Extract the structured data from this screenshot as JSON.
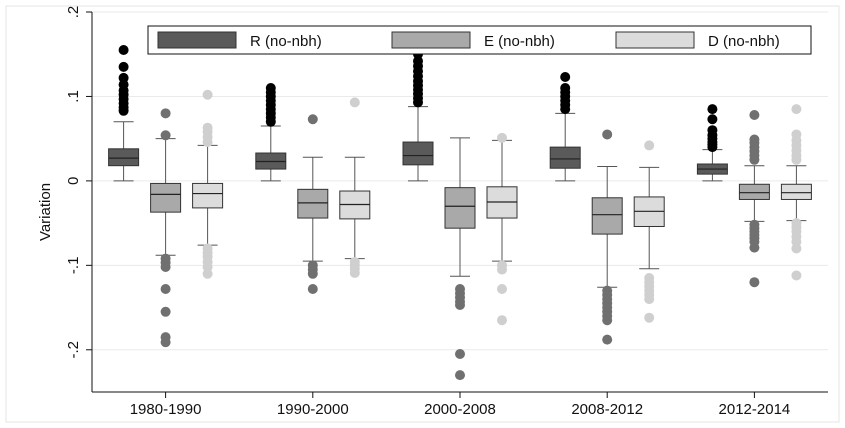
{
  "chart_data": {
    "type": "box",
    "ylabel": "Variation",
    "ylim": [
      -0.25,
      0.2
    ],
    "yticks": [
      {
        "value": 0.2,
        "label": ".2"
      },
      {
        "value": 0.1,
        "label": ".1"
      },
      {
        "value": 0.0,
        "label": "0"
      },
      {
        "value": -0.1,
        "label": "-.1"
      },
      {
        "value": -0.2,
        "label": "-.2"
      }
    ],
    "categories": [
      "1980-1990",
      "1990-2000",
      "2000-2008",
      "2008-2012",
      "2012-2014"
    ],
    "grid": true,
    "legend_position": "top-right",
    "series": [
      {
        "name": "R (no-nbh)",
        "color": "#5a5a5a",
        "boxes": [
          {
            "lw": 0.0,
            "q1": 0.018,
            "med": 0.027,
            "q3": 0.038,
            "uw": 0.07,
            "outliers": [
              0.083,
              0.087,
              0.092,
              0.097,
              0.102,
              0.107,
              0.114,
              0.122,
              0.135,
              0.155
            ]
          },
          {
            "lw": 0.0,
            "q1": 0.014,
            "med": 0.023,
            "q3": 0.033,
            "uw": 0.065,
            "outliers": [
              0.07,
              0.075,
              0.08,
              0.085,
              0.09,
              0.095,
              0.1,
              0.105,
              0.11
            ]
          },
          {
            "lw": 0.0,
            "q1": 0.019,
            "med": 0.03,
            "q3": 0.046,
            "uw": 0.088,
            "outliers": [
              0.093,
              0.098,
              0.103,
              0.108,
              0.113,
              0.118,
              0.124,
              0.13,
              0.136,
              0.142,
              0.15
            ]
          },
          {
            "lw": 0.0,
            "q1": 0.015,
            "med": 0.026,
            "q3": 0.04,
            "uw": 0.08,
            "outliers": [
              0.085,
              0.09,
              0.095,
              0.1,
              0.105,
              0.11,
              0.123
            ]
          },
          {
            "lw": 0.0,
            "q1": 0.008,
            "med": 0.014,
            "q3": 0.02,
            "uw": 0.037,
            "outliers": [
              0.04,
              0.043,
              0.046,
              0.05,
              0.054,
              0.06,
              0.073,
              0.085
            ]
          }
        ]
      },
      {
        "name": "E (no-nbh)",
        "color": "#a9a9a9",
        "boxes": [
          {
            "lw": -0.088,
            "q1": -0.037,
            "med": -0.016,
            "q3": -0.003,
            "uw": 0.05,
            "outliers": [
              0.054,
              0.08,
              -0.092,
              -0.097,
              -0.102,
              -0.128,
              -0.155,
              -0.185,
              -0.191
            ]
          },
          {
            "lw": -0.095,
            "q1": -0.044,
            "med": -0.026,
            "q3": -0.01,
            "uw": 0.028,
            "outliers": [
              0.073,
              -0.1,
              -0.105,
              -0.11,
              -0.128
            ]
          },
          {
            "lw": -0.113,
            "q1": -0.056,
            "med": -0.03,
            "q3": -0.008,
            "uw": 0.051,
            "outliers": [
              -0.128,
              -0.133,
              -0.138,
              -0.143,
              -0.147,
              -0.205,
              -0.23
            ]
          },
          {
            "lw": -0.126,
            "q1": -0.063,
            "med": -0.04,
            "q3": -0.02,
            "uw": 0.017,
            "outliers": [
              0.055,
              -0.13,
              -0.135,
              -0.14,
              -0.145,
              -0.15,
              -0.155,
              -0.16,
              -0.165,
              -0.188
            ]
          },
          {
            "lw": -0.048,
            "q1": -0.022,
            "med": -0.014,
            "q3": -0.004,
            "uw": 0.018,
            "outliers": [
              0.025,
              0.03,
              0.035,
              0.04,
              0.045,
              0.049,
              0.078,
              -0.052,
              -0.056,
              -0.06,
              -0.064,
              -0.068,
              -0.072,
              -0.079,
              -0.12
            ]
          }
        ]
      },
      {
        "name": "D (no-nbh)",
        "color": "#dcdcdc",
        "boxes": [
          {
            "lw": -0.076,
            "q1": -0.032,
            "med": -0.015,
            "q3": -0.003,
            "uw": 0.042,
            "outliers": [
              0.046,
              0.052,
              0.058,
              0.063,
              0.102,
              -0.08,
              -0.085,
              -0.09,
              -0.096,
              -0.102,
              -0.11
            ]
          },
          {
            "lw": -0.092,
            "q1": -0.045,
            "med": -0.028,
            "q3": -0.012,
            "uw": 0.028,
            "outliers": [
              0.093,
              -0.096,
              -0.1,
              -0.104,
              -0.109
            ]
          },
          {
            "lw": -0.095,
            "q1": -0.044,
            "med": -0.025,
            "q3": -0.007,
            "uw": 0.048,
            "outliers": [
              0.051,
              -0.1,
              -0.105,
              -0.128,
              -0.165
            ]
          },
          {
            "lw": -0.104,
            "q1": -0.054,
            "med": -0.036,
            "q3": -0.019,
            "uw": 0.016,
            "outliers": [
              0.042,
              -0.115,
              -0.12,
              -0.125,
              -0.13,
              -0.135,
              -0.14,
              -0.162
            ]
          },
          {
            "lw": -0.047,
            "q1": -0.022,
            "med": -0.014,
            "q3": -0.004,
            "uw": 0.018,
            "outliers": [
              0.025,
              0.03,
              0.036,
              0.042,
              0.048,
              0.055,
              0.085,
              -0.05,
              -0.055,
              -0.06,
              -0.066,
              -0.072,
              -0.08,
              -0.112
            ]
          }
        ]
      }
    ]
  }
}
